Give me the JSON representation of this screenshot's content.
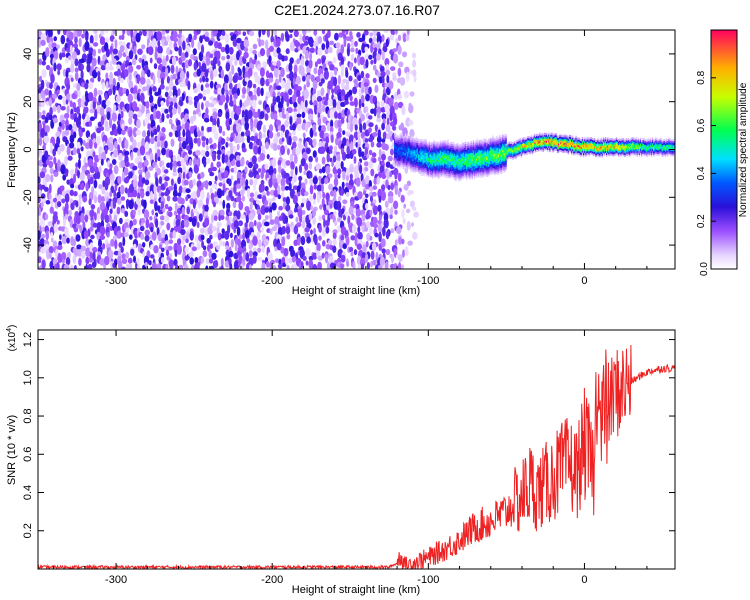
{
  "figure": {
    "title": "C2E1.2024.273.07.16.R07"
  },
  "colors": {
    "spectrogram_palette": [
      "#ffffff",
      "#e6d2ff",
      "#b980ff",
      "#7f2ee6",
      "#2a10d9",
      "#0058ff",
      "#00e0ff",
      "#00ff50",
      "#c8ff00",
      "#ffd000",
      "#ff7000",
      "#ff0000"
    ],
    "snr_line": "#ee2222",
    "axis": "#000000"
  },
  "chart_data": [
    {
      "type": "heatmap",
      "title": "C2E1.2024.273.07.16.R07",
      "xlabel": "Height of straight line (km)",
      "ylabel": "Frequency (Hz)",
      "xlim": [
        -350,
        58
      ],
      "ylim": [
        -50,
        50
      ],
      "x_ticks": [
        -300,
        -200,
        -100,
        0
      ],
      "y_ticks": [
        -40,
        -20,
        0,
        20,
        40
      ],
      "colorbar": {
        "label": "Normalized spectral amplitude",
        "range": [
          0.0,
          1.0
        ],
        "ticks": [
          "0.0",
          "0.2",
          "0.4",
          "0.6",
          "0.8"
        ],
        "tick_values": [
          0.0,
          0.2,
          0.4,
          0.6,
          0.8
        ]
      },
      "signal_trace": {
        "description": "tone emerges near -120 km, frequency offset vs height",
        "x": [
          -122,
          -110,
          -100,
          -90,
          -80,
          -70,
          -60,
          -50,
          -40,
          -30,
          -20,
          -10,
          0,
          10,
          20,
          30,
          40,
          58
        ],
        "y": [
          0,
          -2,
          -4,
          -4,
          -5,
          -4,
          -3,
          -1,
          1,
          3,
          3,
          2,
          1,
          1,
          1,
          1,
          1,
          1
        ],
        "peak_amplitude": [
          0.35,
          0.45,
          0.55,
          0.6,
          0.6,
          0.65,
          0.65,
          0.7,
          0.8,
          0.9,
          0.95,
          0.95,
          0.9,
          0.9,
          0.85,
          0.75,
          0.6,
          0.6
        ]
      },
      "noise_region": {
        "x_range": [
          -350,
          -115
        ],
        "y_range": [
          -50,
          50
        ]
      }
    },
    {
      "type": "line",
      "xlabel": "Height of straight line (km)",
      "ylabel": "SNR (10 * v/v)",
      "scale_label": "(x10",
      "scale_exponent": "4",
      "scale_suffix": ")",
      "xlim": [
        -350,
        58
      ],
      "ylim": [
        0,
        1.25
      ],
      "x_ticks": [
        -300,
        -200,
        -100,
        0
      ],
      "y_ticks": [
        0.2,
        0.4,
        0.6,
        0.8,
        1.0,
        1.2
      ],
      "y_tick_labels": [
        "0.2",
        "0.4",
        "0.6",
        "0.8",
        "1.0",
        "1.2"
      ],
      "series": [
        {
          "x": [
            -350,
            -300,
            -250,
            -200,
            -150,
            -125,
            -120,
            -118,
            -115,
            -110,
            -100,
            -90,
            -80,
            -70,
            -60,
            -50,
            -40,
            -35,
            -30,
            -20,
            -10,
            -5,
            0,
            5,
            8,
            10,
            15,
            20,
            30,
            40,
            50,
            58
          ],
          "y": [
            0.01,
            0.01,
            0.01,
            0.01,
            0.01,
            0.01,
            0.03,
            0.07,
            0.02,
            0.03,
            0.06,
            0.1,
            0.15,
            0.22,
            0.25,
            0.3,
            0.38,
            0.45,
            0.4,
            0.48,
            0.55,
            0.5,
            0.65,
            0.55,
            0.4,
            0.75,
            0.85,
            0.92,
            0.98,
            1.03,
            1.05,
            1.05
          ]
        }
      ]
    }
  ]
}
